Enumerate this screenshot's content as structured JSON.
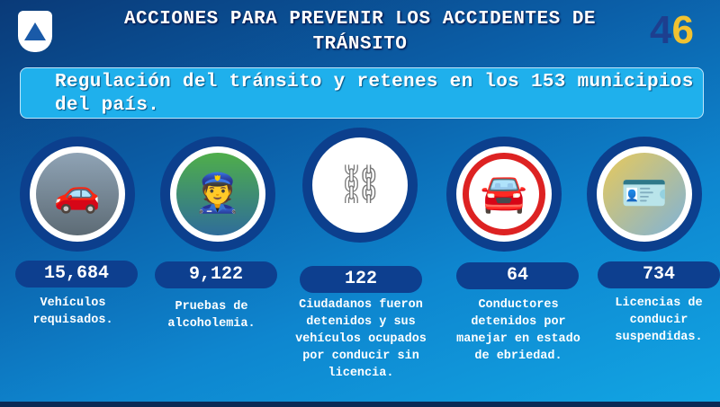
{
  "header": {
    "title": "ACCIONES PARA PREVENIR LOS ACCIDENTES DE TRÁNSITO",
    "logo_left": "POLICIA NACIONAL",
    "logo_right": "46"
  },
  "banner": {
    "text": "Regulación del tránsito y retenes en los 153 municipios del país."
  },
  "stats": [
    {
      "value": "15,684",
      "label": "Vehículos requisados.",
      "icon": "car-checkpoint-photo"
    },
    {
      "value": "9,122",
      "label": "Pruebas de alcoholemia.",
      "icon": "alcohol-test-photo"
    },
    {
      "value": "122",
      "label": "Ciudadanos fueron detenidos y sus vehículos ocupados por conducir sin licencia.",
      "icon": "handcuffs-icon"
    },
    {
      "value": "64",
      "label": "Conductores detenidos por manejar  en estado de ebriedad.",
      "icon": "no-drinking-driving-icon"
    },
    {
      "value": "734",
      "label": "Licencias de conducir suspendidas.",
      "icon": "driver-license-photo"
    }
  ],
  "colors": {
    "circle": "#0c3f8d",
    "pill": "#0d3f8f",
    "banner": "#1fb0ec"
  }
}
